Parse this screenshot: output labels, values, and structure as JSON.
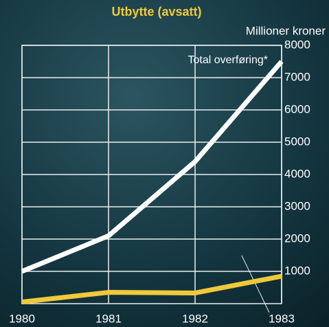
{
  "chart_data": {
    "type": "line",
    "title": "Utbytte (avsatt)",
    "y_label": "Millioner kroner",
    "annotation": "Total overføring*",
    "x": [
      1980,
      1981,
      1982,
      1983
    ],
    "xlim": [
      1980,
      1983
    ],
    "xticks": [
      1980,
      1981,
      1982,
      1983
    ],
    "ylim": [
      0,
      8000
    ],
    "yticks": [
      1000,
      2000,
      3000,
      4000,
      5000,
      6000,
      7000,
      8000
    ],
    "grid": true,
    "series": [
      {
        "name": "Total overføring*",
        "color": "#ffffff",
        "values": [
          1000,
          2100,
          4400,
          7500
        ]
      },
      {
        "color": "#f0c93a",
        "values": [
          50,
          350,
          330,
          850
        ]
      }
    ]
  }
}
